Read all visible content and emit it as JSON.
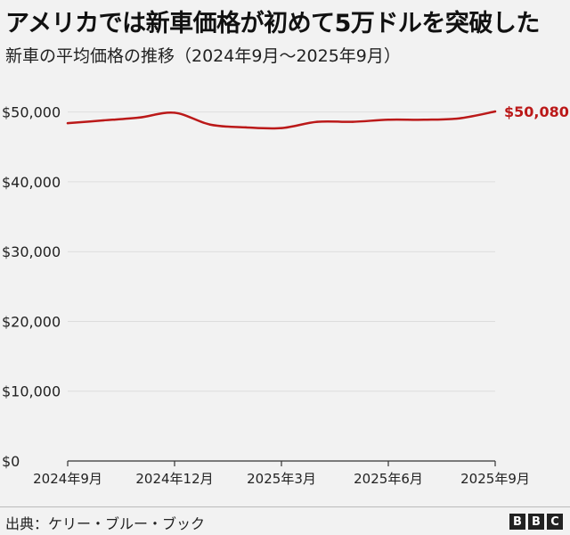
{
  "title": "アメリカでは新車価格が初めて5万ドルを突破した",
  "subtitle": "新車の平均価格の推移（2024年9月～2025年9月）",
  "source": "出典：ケリー・ブルー・ブック",
  "logo": [
    "B",
    "B",
    "C"
  ],
  "colors": {
    "line": "#bb1919",
    "label": "#bb1919",
    "grid": "#dddddd",
    "axis": "#333333"
  },
  "chart_data": {
    "type": "line",
    "y_ticks": [
      {
        "value": 0,
        "label": "$0"
      },
      {
        "value": 10000,
        "label": "$10,000"
      },
      {
        "value": 20000,
        "label": "$20,000"
      },
      {
        "value": 30000,
        "label": "$30,000"
      },
      {
        "value": 40000,
        "label": "$40,000"
      },
      {
        "value": 50000,
        "label": "$50,000"
      }
    ],
    "ylim": [
      0,
      52000
    ],
    "x_labels": [
      {
        "index": 0,
        "label": "2024年9月"
      },
      {
        "index": 3,
        "label": "2024年12月"
      },
      {
        "index": 6,
        "label": "2025年3月"
      },
      {
        "index": 9,
        "label": "2025年6月"
      },
      {
        "index": 12,
        "label": "2025年9月"
      }
    ],
    "x": [
      "2024年9月",
      "2024年10月",
      "2024年11月",
      "2024年12月",
      "2025年1月",
      "2025年2月",
      "2025年3月",
      "2025年4月",
      "2025年5月",
      "2025年6月",
      "2025年7月",
      "2025年8月",
      "2025年9月"
    ],
    "values": [
      48400,
      48800,
      49200,
      49900,
      48200,
      47800,
      47700,
      48600,
      48600,
      48900,
      48900,
      49100,
      50080
    ],
    "end_label": "$50,080",
    "grid": true
  }
}
